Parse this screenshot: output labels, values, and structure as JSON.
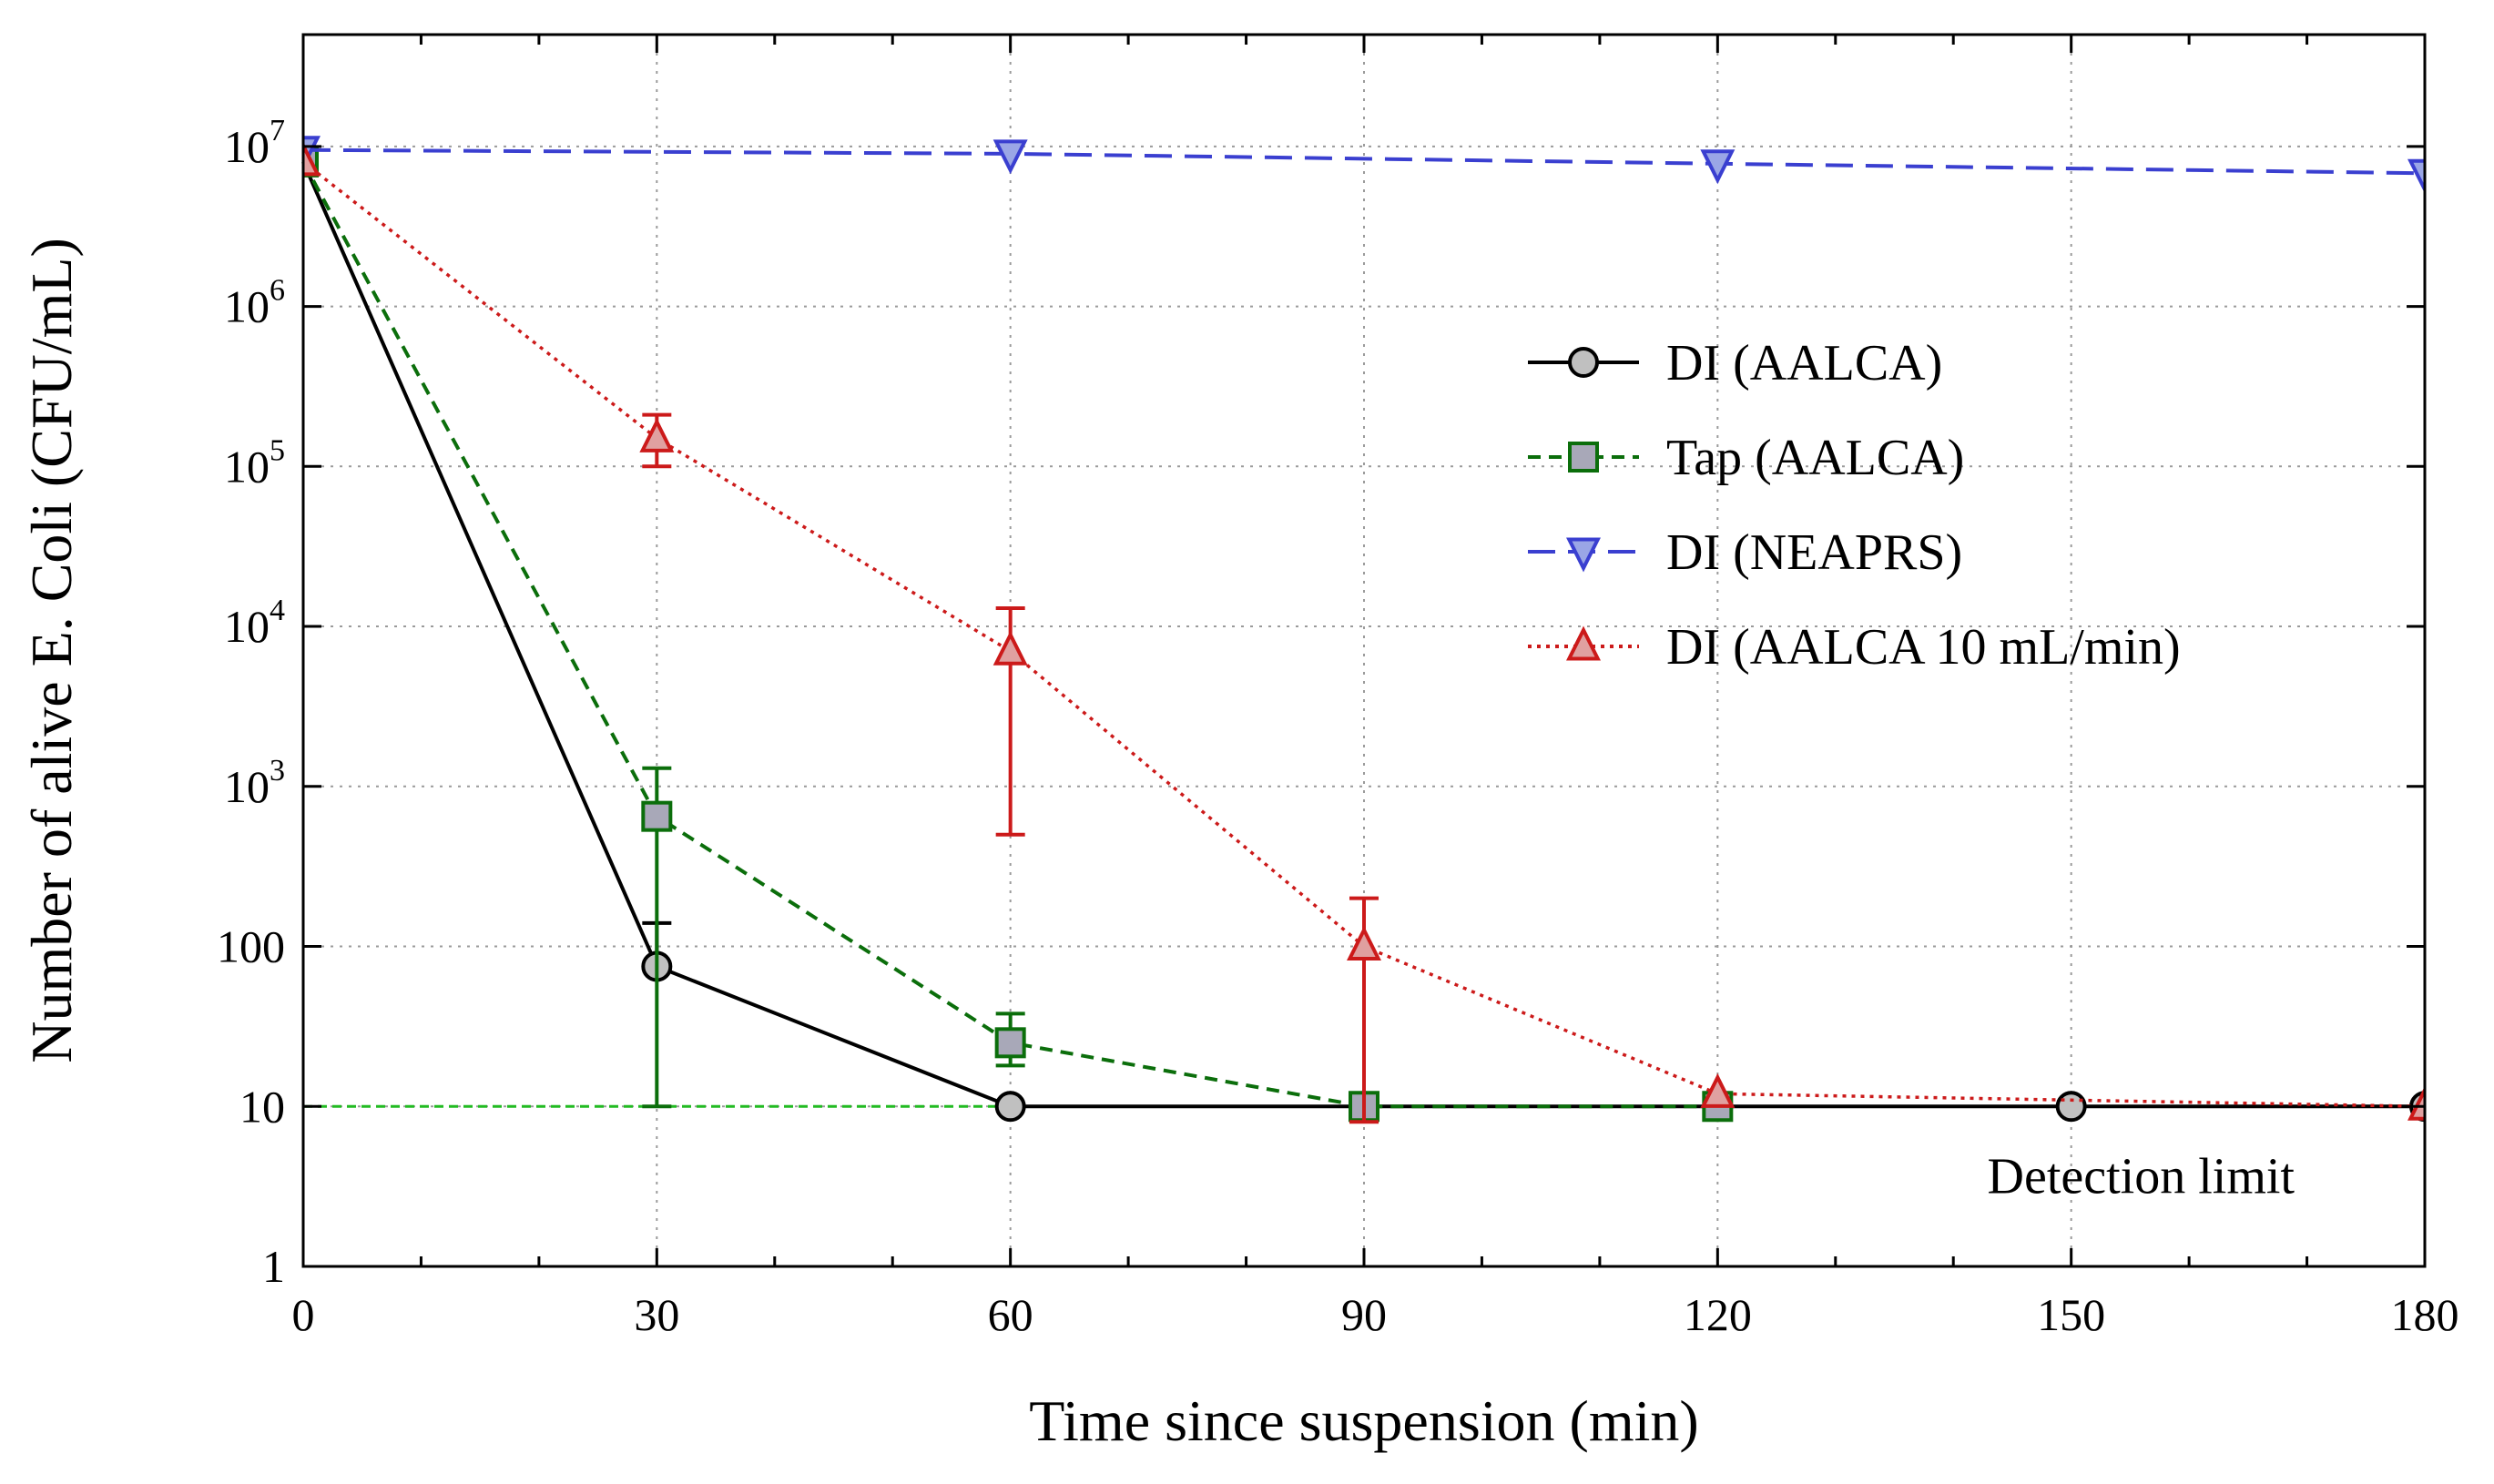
{
  "chart_data": {
    "type": "line",
    "xlabel": "Time since suspension (min)",
    "ylabel": "Number of alive E. Coli (CFU/mL)",
    "xlim": [
      0,
      180
    ],
    "ylim": [
      1,
      50000000
    ],
    "yscale": "log",
    "grid": true,
    "legend_position": "center-right",
    "xticks": [
      {
        "value": 0,
        "label": "0"
      },
      {
        "value": 30,
        "label": "30"
      },
      {
        "value": 60,
        "label": "60"
      },
      {
        "value": 90,
        "label": "90"
      },
      {
        "value": 120,
        "label": "120"
      },
      {
        "value": 150,
        "label": "150"
      },
      {
        "value": 180,
        "label": "180"
      }
    ],
    "yticks": [
      {
        "value": 1,
        "base": "1",
        "exp": ""
      },
      {
        "value": 10,
        "base": "10",
        "exp": ""
      },
      {
        "value": 100,
        "base": "100",
        "exp": ""
      },
      {
        "value": 1000,
        "base": "10",
        "exp": "3"
      },
      {
        "value": 10000,
        "base": "10",
        "exp": "4"
      },
      {
        "value": 100000,
        "base": "10",
        "exp": "5"
      },
      {
        "value": 1000000,
        "base": "10",
        "exp": "6"
      },
      {
        "value": 10000000,
        "base": "10",
        "exp": "7"
      }
    ],
    "series": [
      {
        "name": "DI (AALCA)",
        "color": "#000000",
        "marker": "circle",
        "marker_fill": "#c0c0c0",
        "dash": "",
        "x": [
          0,
          30,
          60,
          90,
          120,
          150,
          180
        ],
        "y": [
          8000000,
          75,
          10,
          10,
          10,
          10,
          10
        ],
        "err_low": [
          null,
          null,
          null,
          null,
          null,
          null,
          null
        ],
        "err_high": [
          null,
          140,
          null,
          null,
          null,
          null,
          null
        ]
      },
      {
        "name": "Tap (AALCA)",
        "color": "#0b6e0b",
        "marker": "square",
        "marker_fill": "#a8a8b8",
        "dash": "14,9",
        "x": [
          0,
          30,
          60,
          90,
          120
        ],
        "y": [
          8000000,
          650,
          25,
          10,
          10
        ],
        "err_low": [
          null,
          10,
          18,
          null,
          null
        ],
        "err_high": [
          null,
          1300,
          38,
          null,
          null
        ]
      },
      {
        "name": "DI (NEAPRS)",
        "color": "#3a3fd0",
        "marker": "triangle-down",
        "marker_fill": "#9aa6e6",
        "dash": "30,14",
        "x": [
          0,
          60,
          120,
          180
        ],
        "y": [
          9500000,
          9000000,
          7800000,
          6800000
        ],
        "err_low": [
          null,
          null,
          null,
          null
        ],
        "err_high": [
          null,
          null,
          null,
          null
        ]
      },
      {
        "name": "DI (AALCA 10 mL/min)",
        "color": "#cc1a1a",
        "marker": "triangle-up",
        "marker_fill": "#e0a0a0",
        "dash": "4,6",
        "x": [
          0,
          30,
          60,
          90,
          120,
          180
        ],
        "y": [
          8000000,
          150000,
          7000,
          100,
          12,
          10
        ],
        "err_low": [
          null,
          100000,
          500,
          8,
          null,
          null
        ],
        "err_high": [
          null,
          210000,
          13000,
          200,
          null,
          null
        ]
      }
    ],
    "detection_limit": {
      "value": 10,
      "label": "Detection limit",
      "color": "#22bb22"
    }
  }
}
